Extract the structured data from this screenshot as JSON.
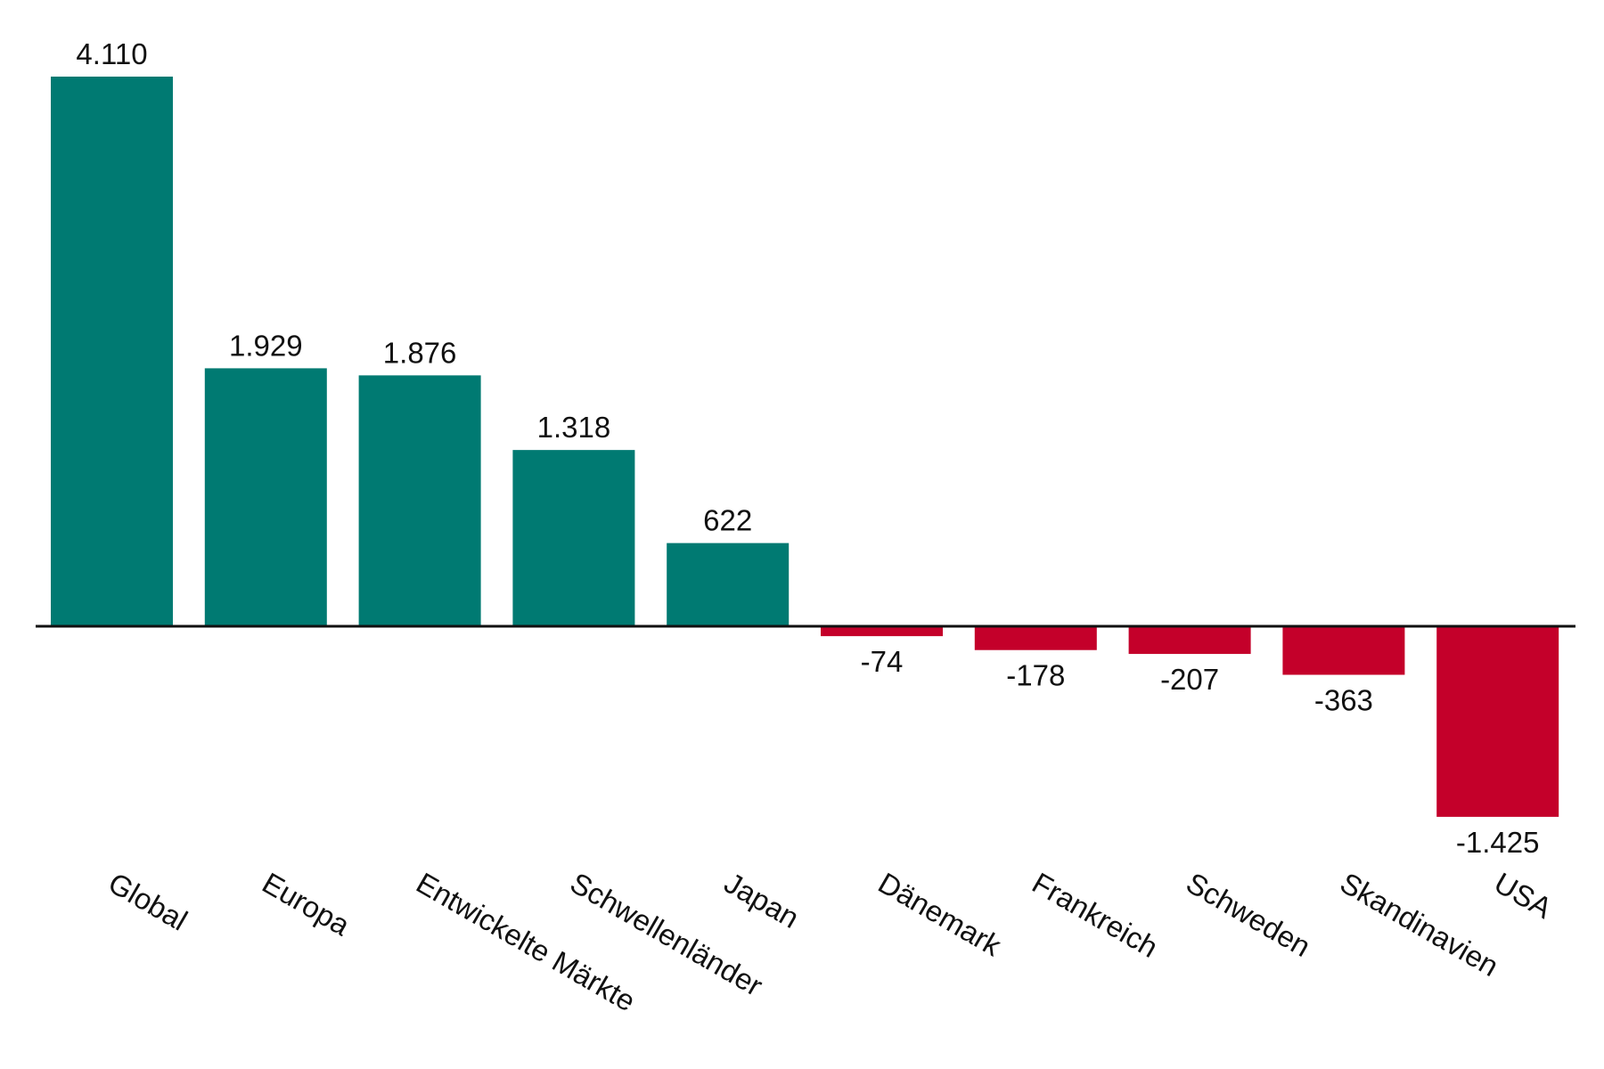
{
  "chart_data": {
    "type": "bar",
    "title": "",
    "xlabel": "",
    "ylabel": "",
    "categories": [
      "Global",
      "Europa",
      "Entwickelte Märkte",
      "Schwellenländer",
      "Japan",
      "Dänemark",
      "Frankreich",
      "Schweden",
      "Skandinavien",
      "USA"
    ],
    "values": [
      4110,
      1929,
      1876,
      1318,
      622,
      -74,
      -178,
      -207,
      -363,
      -1425
    ],
    "value_labels": [
      "4.110",
      "1.929",
      "1.876",
      "1.318",
      "622",
      "-74",
      "-178",
      "-207",
      "-363",
      "-1.425"
    ],
    "ylim": [
      -1425,
      4110
    ],
    "grid": false,
    "legend": "none",
    "colors": {
      "positive": "#007A72",
      "negative": "#C4002A",
      "baseline": "#111111",
      "text": "#111111"
    }
  }
}
